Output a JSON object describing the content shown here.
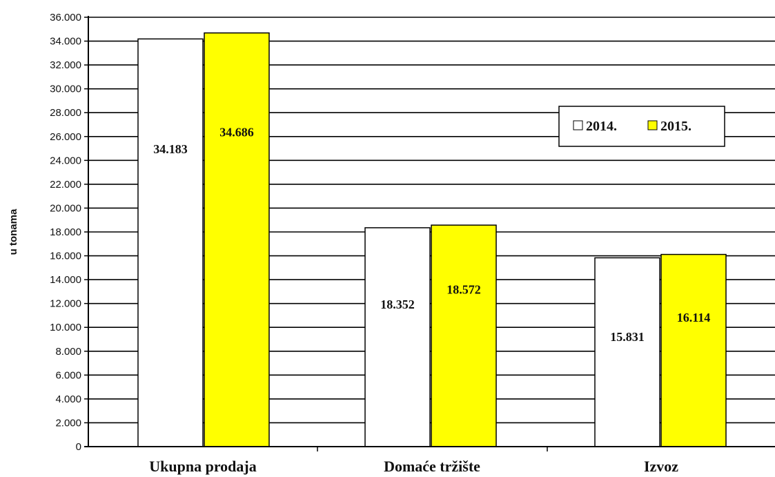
{
  "chart_data": {
    "type": "bar",
    "ylabel": "u tonama",
    "categories": [
      "Ukupna prodaja",
      "Domaće tržište",
      "Izvoz"
    ],
    "series": [
      {
        "name": "2014.",
        "color": "#ffffff",
        "values": [
          34183,
          18352,
          15831
        ],
        "labels": [
          "34.183",
          "18.352",
          "15.831"
        ]
      },
      {
        "name": "2015.",
        "color": "#ffff00",
        "values": [
          34686,
          18572,
          16114
        ],
        "labels": [
          "34.686",
          "18.572",
          "16.114"
        ]
      }
    ],
    "ylim": [
      0,
      36000
    ],
    "ystep": 2000,
    "ytick_labels": [
      "0",
      "2.000",
      "4.000",
      "6.000",
      "8.000",
      "10.000",
      "12.000",
      "14.000",
      "16.000",
      "18.000",
      "20.000",
      "22.000",
      "24.000",
      "26.000",
      "28.000",
      "30.000",
      "32.000",
      "34.000",
      "36.000"
    ],
    "grid": true,
    "legend_position": "top-right"
  }
}
